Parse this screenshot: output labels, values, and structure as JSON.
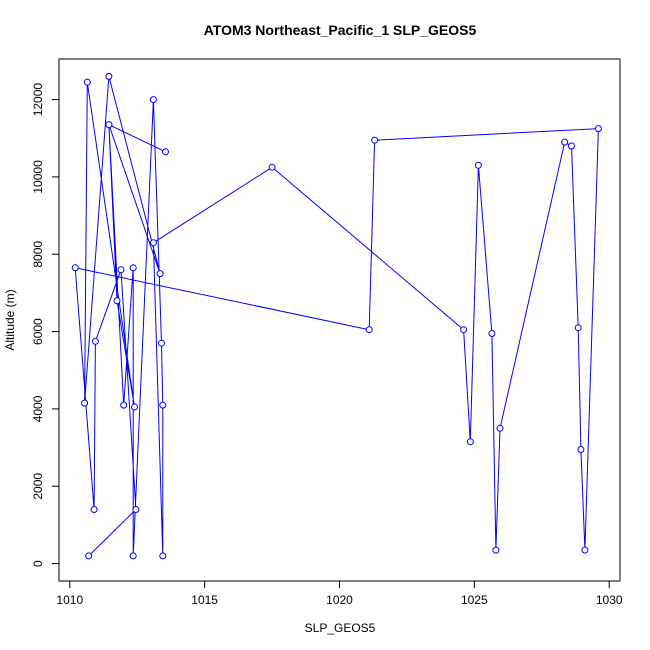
{
  "chart_data": {
    "type": "line",
    "title": "ATOM3 Northeast_Pacific_1 SLP_GEOS5",
    "xlabel": "SLP_GEOS5",
    "ylabel": "Altitude (m)",
    "xlim": [
      1009.6,
      1030.4
    ],
    "ylim": [
      -450,
      13050
    ],
    "xticks": [
      1010,
      1015,
      1020,
      1025,
      1030
    ],
    "yticks": [
      0,
      2000,
      4000,
      6000,
      8000,
      10000,
      12000
    ],
    "grid": false,
    "legend": "none",
    "colors": {
      "series": "#0000ff",
      "axis": "#000000"
    },
    "points": [
      {
        "x": 1013.55,
        "y": 10650
      },
      {
        "x": 1011.45,
        "y": 11350
      },
      {
        "x": 1013.35,
        "y": 7500
      },
      {
        "x": 1011.45,
        "y": 12600
      },
      {
        "x": 1010.55,
        "y": 4150
      },
      {
        "x": 1010.65,
        "y": 12450
      },
      {
        "x": 1012.4,
        "y": 4050
      },
      {
        "x": 1011.75,
        "y": 6800
      },
      {
        "x": 1011.45,
        "y": 11350
      },
      {
        "x": 1012.0,
        "y": 4100
      },
      {
        "x": 1012.35,
        "y": 7650
      },
      {
        "x": 1012.35,
        "y": 200
      },
      {
        "x": 1013.1,
        "y": 12000
      },
      {
        "x": 1013.4,
        "y": 5700
      },
      {
        "x": 1013.45,
        "y": 4100
      },
      {
        "x": 1013.45,
        "y": 200
      },
      {
        "x": 1013.1,
        "y": 8300
      },
      {
        "x": 1017.5,
        "y": 10250
      },
      {
        "x": 1024.6,
        "y": 6050
      },
      {
        "x": 1024.85,
        "y": 3150
      },
      {
        "x": 1025.15,
        "y": 10300
      },
      {
        "x": 1025.65,
        "y": 5950
      },
      {
        "x": 1025.8,
        "y": 350
      },
      {
        "x": 1025.95,
        "y": 3500
      },
      {
        "x": 1028.35,
        "y": 10900
      },
      {
        "x": 1028.6,
        "y": 10800
      },
      {
        "x": 1028.85,
        "y": 6100
      },
      {
        "x": 1028.95,
        "y": 2950
      },
      {
        "x": 1029.1,
        "y": 350
      },
      {
        "x": 1029.6,
        "y": 11250
      },
      {
        "x": 1021.3,
        "y": 10950
      },
      {
        "x": 1021.1,
        "y": 6050
      },
      {
        "x": 1010.2,
        "y": 7650
      },
      {
        "x": 1010.9,
        "y": 1400
      },
      {
        "x": 1010.95,
        "y": 5750
      },
      {
        "x": 1011.9,
        "y": 7600
      },
      {
        "x": 1012.45,
        "y": 1400
      },
      {
        "x": 1010.7,
        "y": 200
      }
    ]
  }
}
